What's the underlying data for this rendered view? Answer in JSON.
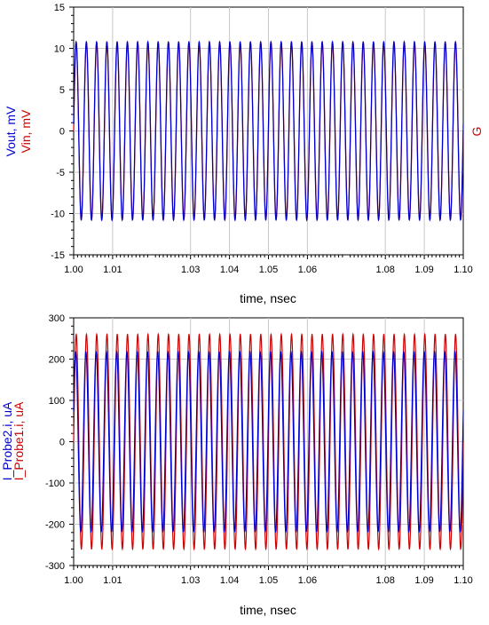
{
  "chart_data": [
    {
      "type": "line",
      "xlabel": "time, nsec",
      "ylabels": [
        {
          "text": "Vout, mV",
          "color": "#0000cc"
        },
        {
          "text": "Vin, mV",
          "color": "#cc0000"
        }
      ],
      "right_label": {
        "text": "G",
        "color": "#cc0000"
      },
      "left_fragment": "",
      "xlim": [
        1.0,
        1.1
      ],
      "ylim": [
        -15,
        15
      ],
      "xticks": [
        1.0,
        1.01,
        1.03,
        1.04,
        1.05,
        1.06,
        1.08,
        1.09,
        1.1
      ],
      "xtick_labels": [
        "1.00",
        "1.01",
        "1.03",
        "1.04",
        "1.05",
        "1.06",
        "1.08",
        "1.09",
        "1.10"
      ],
      "yticks": [
        -15,
        -10,
        -5,
        0,
        5,
        10,
        15
      ],
      "ytick_labels": [
        "-15",
        "-10",
        "-5",
        "0",
        "5",
        "10",
        "15"
      ],
      "grid": true,
      "series": [
        {
          "color": "#cc0000",
          "amplitude": 10.7,
          "frequency_ghz": 380,
          "phase": 0.0
        },
        {
          "color": "#0000cc",
          "amplitude": 10.8,
          "frequency_ghz": 380,
          "phase": 0.08
        }
      ]
    },
    {
      "type": "line",
      "xlabel": "time, nsec",
      "ylabels": [
        {
          "text": "I_Probe2.i, uA",
          "color": "#0000cc"
        },
        {
          "text": "I_Probe1.i, uA",
          "color": "#cc0000"
        }
      ],
      "left_fragment": "",
      "xlim": [
        1.0,
        1.1
      ],
      "ylim": [
        -300,
        300
      ],
      "xticks": [
        1.0,
        1.01,
        1.03,
        1.04,
        1.05,
        1.06,
        1.08,
        1.09,
        1.1
      ],
      "xtick_labels": [
        "1.00",
        "1.01",
        "1.03",
        "1.04",
        "1.05",
        "1.06",
        "1.08",
        "1.09",
        "1.10"
      ],
      "yticks": [
        -300,
        -200,
        -100,
        0,
        100,
        200,
        300
      ],
      "ytick_labels": [
        "-300",
        "-200",
        "-100",
        "0",
        "100",
        "200",
        "300"
      ],
      "grid": true,
      "series": [
        {
          "color": "#cc0000",
          "amplitude": 260,
          "frequency_ghz": 380,
          "phase": 0.0
        },
        {
          "color": "#0000cc",
          "amplitude": 218,
          "frequency_ghz": 380,
          "phase": 0.35
        }
      ]
    }
  ]
}
